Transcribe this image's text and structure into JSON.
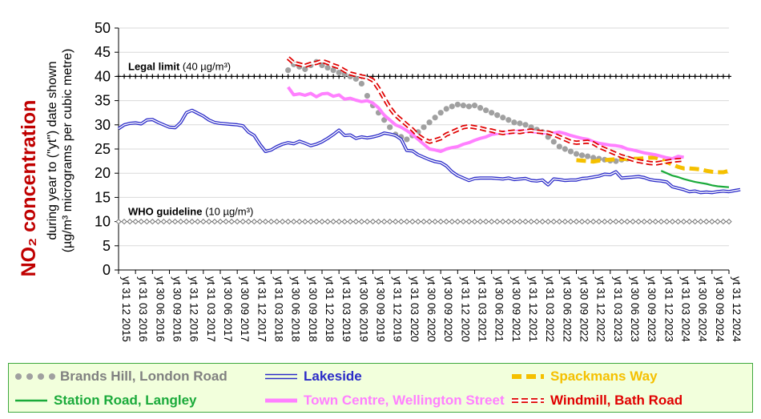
{
  "chart_data": {
    "type": "line",
    "ylabel_main": "NO₂ concentration",
    "ylabel_sub1": "during year to (\"yt\") date shown",
    "ylabel_sub2": "(µg/m³ micrograms per cubic metre)",
    "ylim": [
      0,
      50
    ],
    "yticks": [
      0,
      5,
      10,
      15,
      20,
      25,
      30,
      35,
      40,
      45,
      50
    ],
    "grid": "horizontal",
    "legend_position": "bottom",
    "x_start": "2015-12",
    "x_end": "2024-12",
    "x_tick_labels": [
      "yt 31 12 2015",
      "yt 31 03 2016",
      "yt 30 06 2016",
      "yt 30 09 2016",
      "yt 31 12 2016",
      "yt 31 03 2017",
      "yt 30 06 2017",
      "yt 30 09 2017",
      "yt 31 12 2017",
      "yt 31 03 2018",
      "yt 30 06 2018",
      "yt 30 09 2018",
      "yt 31 12 2018",
      "yt 31 03 2019",
      "yt 30 06 2019",
      "yt 30 09 2019",
      "yt 31 12 2019",
      "yt 31 03 2020",
      "yt 30 06 2020",
      "yt 30 09 2020",
      "yt 31 12 2020",
      "yt 31 03 2021",
      "yt 30 06 2021",
      "yt 30 09 2021",
      "yt 31 12 2021",
      "yt 31 03 2022",
      "yt 30 06 2022",
      "yt 30 09 2022",
      "yt 31 12 2022",
      "yt 31 03 2023",
      "yt 30 06 2023",
      "yt 30 09 2023",
      "yt 31 12 2023",
      "yt 31 03 2024",
      "yt 30 06 2024",
      "yt 30 09 2024",
      "yt 31 12 2024"
    ],
    "reference_lines": [
      {
        "label_bold": "Legal limit",
        "label_rest": "(40 µg/m³)",
        "value": 40,
        "color": "#000000",
        "marker": "plus"
      },
      {
        "label_bold": "WHO guideline",
        "label_rest": "(10 µg/m³)",
        "value": 10,
        "color": "#777777",
        "marker": "diamond"
      }
    ],
    "series": [
      {
        "name": "Brands Hill, London Road",
        "color": "#a0a0a0",
        "text_color": "#808080",
        "style": "dotted",
        "start": "2018-06",
        "values": [
          41.3,
          42.5,
          42,
          41.5,
          42.3,
          43,
          42.3,
          41.8,
          41.3,
          40.8,
          40.5,
          40,
          39.5,
          38.5,
          36,
          34,
          32.5,
          31,
          29.5,
          28,
          27.5,
          27,
          27.8,
          28.5,
          29.5,
          30.5,
          31.5,
          32.5,
          33.3,
          33.8,
          34.2,
          34,
          33.8,
          34,
          33.5,
          33,
          32.5,
          32,
          31.5,
          31,
          30.5,
          30.3,
          30,
          29.5,
          29,
          28.5,
          27.5,
          26.5,
          25.5,
          25,
          24.5,
          24,
          23.7,
          23.5,
          23.2,
          23,
          22.8,
          22.6,
          22.5,
          22.8,
          23
        ]
      },
      {
        "name": "Lakeside",
        "color": "#2b2bc8",
        "text_color": "#2b2bc8",
        "style": "double",
        "start": "2015-12",
        "values": [
          29.2,
          30,
          30.3,
          30.4,
          30.2,
          31,
          31.1,
          30.5,
          30,
          29.5,
          29.4,
          30.5,
          32.5,
          33,
          32.4,
          31.8,
          31,
          30.5,
          30.3,
          30.2,
          30.1,
          30,
          29.8,
          28.5,
          27.8,
          26,
          24.5,
          24.8,
          25.5,
          26,
          26.3,
          26.1,
          26.6,
          26.2,
          25.7,
          26,
          26.5,
          27.2,
          28,
          28.9,
          27.8,
          27.9,
          27.2,
          27.5,
          27.3,
          27.5,
          27.8,
          28.3,
          28.1,
          27.8,
          27,
          24.7,
          24.6,
          23.8,
          23.3,
          22.8,
          22.4,
          22.2,
          21.5,
          20.3,
          19.5,
          19,
          18.5,
          18.9,
          19,
          19,
          19,
          18.9,
          18.8,
          19,
          18.7,
          18.8,
          18.9,
          18.5,
          18.4,
          18.6,
          17.6,
          18.8,
          18.7,
          18.5,
          18.6,
          18.6,
          18.9,
          19,
          19.2,
          19.4,
          19.8,
          19.7,
          20.3,
          19,
          19.1,
          19.2,
          19.3,
          19.1,
          18.7,
          18.5,
          18.4,
          18.2,
          17.2,
          16.9,
          16.6,
          16.2,
          16.3,
          16,
          16.1,
          16,
          16.2,
          16.3,
          16.2,
          16.4,
          16.6
        ]
      },
      {
        "name": "Spackmans Way",
        "color": "#f5c000",
        "text_color": "#f5c000",
        "style": "dashed",
        "start": "2022-09",
        "values": [
          22.7,
          22.6,
          22.5,
          22.4,
          22.6,
          22.7,
          22.8,
          22.9,
          22.9,
          23,
          23,
          23,
          23.1,
          23.2,
          23.2,
          22.8,
          22.3,
          21.8,
          21.3,
          21,
          21,
          20.9,
          20.8,
          20.5,
          20.3,
          20.2,
          20.2,
          20.5
        ]
      },
      {
        "name": "Station Road, Langley",
        "color": "#1aaa3a",
        "text_color": "#1aaa3a",
        "style": "solid",
        "start": "2023-12",
        "values": [
          20.5,
          20,
          19.5,
          19.2,
          18.8,
          18.5,
          18.2,
          18,
          17.8,
          17.5,
          17.3,
          17.2,
          17.1
        ]
      },
      {
        "name": "Town Centre, Wellington Street",
        "color": "#ff80ff",
        "text_color": "#ff80ff",
        "style": "thick",
        "start": "2018-06",
        "values": [
          37.8,
          36.2,
          36.4,
          36.1,
          36.5,
          35.8,
          36.4,
          36.5,
          35.9,
          36.2,
          35.3,
          35.5,
          35.1,
          34.8,
          35,
          34.5,
          33.5,
          32,
          31,
          30,
          29.5,
          28.8,
          28,
          27,
          26,
          25,
          24.8,
          24.5,
          25,
          25.3,
          25.5,
          26,
          26.3,
          26.8,
          27.2,
          27.5,
          28,
          28.2,
          28.5,
          28.3,
          28.5,
          28.8,
          28.7,
          28.6,
          28.5,
          28.3,
          28.4,
          28.3,
          28.5,
          28.2,
          27.8,
          27.5,
          27.2,
          27,
          26.5,
          26.2,
          26,
          25.8,
          25.7,
          25.5,
          25,
          24.8,
          24.5,
          24.2,
          24,
          23.8,
          23.5,
          23.2,
          23,
          23.5,
          23.3
        ]
      },
      {
        "name": "Windmill, Bath Road",
        "color": "#e00000",
        "text_color": "#e00000",
        "style": "double-red",
        "start": "2018-06",
        "values": [
          43.8,
          42.8,
          42.5,
          42.2,
          42.6,
          42.8,
          43.2,
          42.8,
          42.3,
          41.9,
          41.2,
          40.6,
          40.3,
          40,
          39.8,
          39.2,
          37.5,
          35.5,
          33.5,
          32,
          31,
          30,
          29,
          27.8,
          27,
          26.5,
          26.8,
          27.2,
          28,
          28.5,
          29,
          29.5,
          29.7,
          29.5,
          29.3,
          29,
          28.8,
          28.5,
          28.3,
          28.5,
          28.6,
          28.5,
          28.7,
          28.8,
          28.6,
          28.5,
          28.4,
          28,
          27.5,
          27,
          26.5,
          26.3,
          26.4,
          26.5,
          26.2,
          25.5,
          25,
          24.5,
          24,
          23.5,
          23.2,
          22.8,
          22.5,
          22.3,
          22.1,
          22,
          22.2,
          22.4,
          22.6,
          22.7,
          22.8
        ]
      }
    ]
  }
}
